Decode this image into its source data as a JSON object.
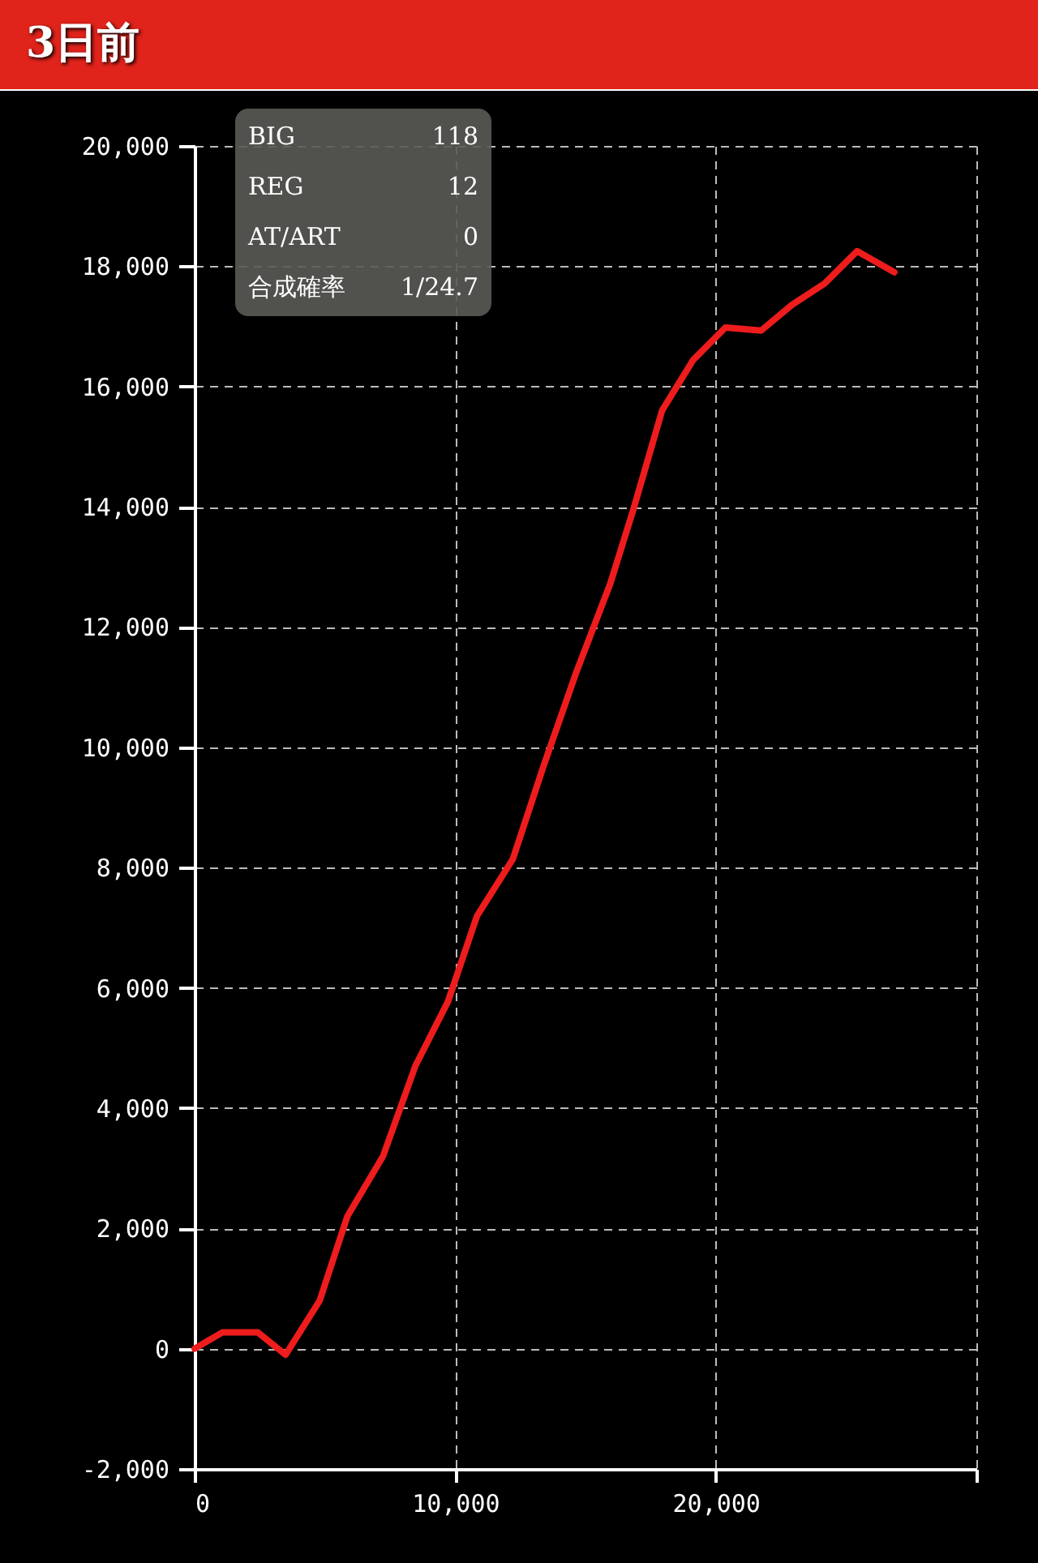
{
  "chart_data": {
    "type": "line",
    "title": "3日前",
    "annotations": [
      "BIG",
      "118",
      "REG",
      "12",
      "AT/ART",
      "0",
      "合成確率",
      "1/24.7"
    ],
    "x": [
      0,
      1060,
      2430,
      3490,
      4800,
      5860,
      7230,
      8470,
      9720,
      10840,
      12210,
      13400,
      14640,
      15950,
      16820,
      17940,
      19130,
      20370,
      21740,
      22930,
      24170,
      25420,
      26850
    ],
    "series": [
      {
        "color": "#ee1c1c",
        "values": [
          0,
          270,
          270,
          -100,
          800,
          2200,
          3200,
          4700,
          5770,
          7200,
          8140,
          9700,
          11240,
          12720,
          13930,
          15600,
          16440,
          16980,
          16930,
          17360,
          17710,
          18250,
          17900
        ]
      }
    ],
    "xlim": [
      0,
      30000
    ],
    "xticks": [
      {
        "value": 0,
        "label": "0"
      },
      {
        "value": 10000,
        "label": "10,000"
      },
      {
        "value": 20000,
        "label": "20,000"
      },
      {
        "value": 30000,
        "label": null
      }
    ],
    "ylim": [
      -2000,
      20000
    ],
    "yticks": [
      {
        "value": -2000,
        "label": "-2,000"
      },
      {
        "value": 0,
        "label": "0"
      },
      {
        "value": 2000,
        "label": "2,000"
      },
      {
        "value": 4000,
        "label": "4,000"
      },
      {
        "value": 6000,
        "label": "6,000"
      },
      {
        "value": 8000,
        "label": "8,000"
      },
      {
        "value": 10000,
        "label": "10,000"
      },
      {
        "value": 12000,
        "label": "12,000"
      },
      {
        "value": 14000,
        "label": "14,000"
      },
      {
        "value": 16000,
        "label": "16,000"
      },
      {
        "value": 18000,
        "label": "18,000"
      },
      {
        "value": 20000,
        "label": "20,000"
      }
    ],
    "grid": true,
    "line_style": "solid",
    "marker": "none"
  }
}
